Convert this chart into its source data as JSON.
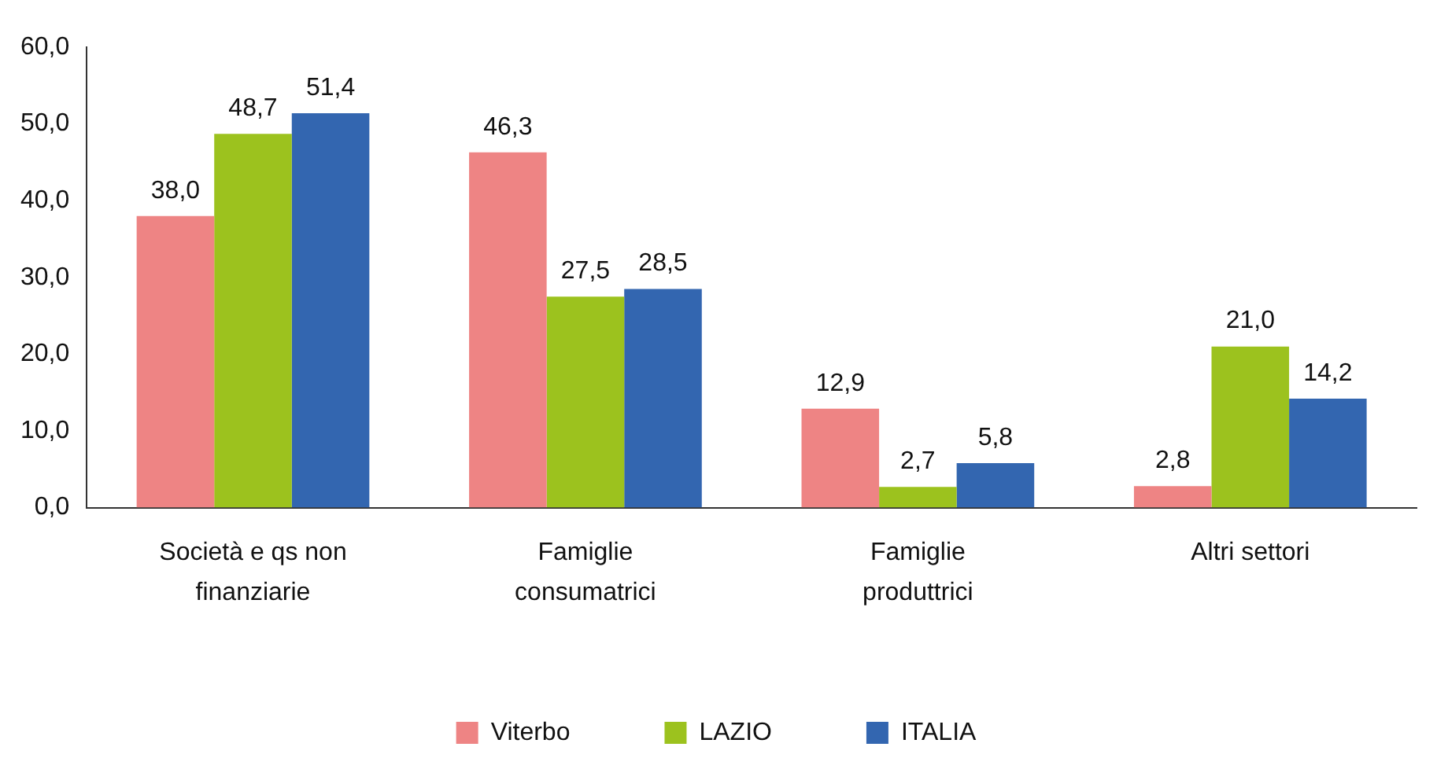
{
  "chart_data": {
    "type": "bar",
    "categories": [
      "Società e qs non finanziarie",
      "Famiglie consumatrici",
      "Famiglie produttrici",
      "Altri settori"
    ],
    "series": [
      {
        "name": "Viterbo",
        "color": "#ee8484",
        "values": [
          38.0,
          46.3,
          12.9,
          2.8
        ],
        "value_labels": [
          "38,0",
          "46,3",
          "12,9",
          "2,8"
        ]
      },
      {
        "name": "LAZIO",
        "color": "#9cc21e",
        "values": [
          48.7,
          27.5,
          2.7,
          21.0
        ],
        "value_labels": [
          "48,7",
          "27,5",
          "2,7",
          "21,0"
        ]
      },
      {
        "name": "ITALIA",
        "color": "#3366b0",
        "values": [
          51.4,
          28.5,
          5.8,
          14.2
        ],
        "value_labels": [
          "51,4",
          "28,5",
          "5,8",
          "14,2"
        ]
      }
    ],
    "ylim": [
      0,
      60
    ],
    "yticks": [
      {
        "value": 0,
        "label": "0,0"
      },
      {
        "value": 10,
        "label": "10,0"
      },
      {
        "value": 20,
        "label": "20,0"
      },
      {
        "value": 30,
        "label": "30,0"
      },
      {
        "value": 40,
        "label": "40,0"
      },
      {
        "value": 50,
        "label": "50,0"
      },
      {
        "value": 60,
        "label": "60,0"
      }
    ],
    "grid": false,
    "legend": "bottom"
  }
}
